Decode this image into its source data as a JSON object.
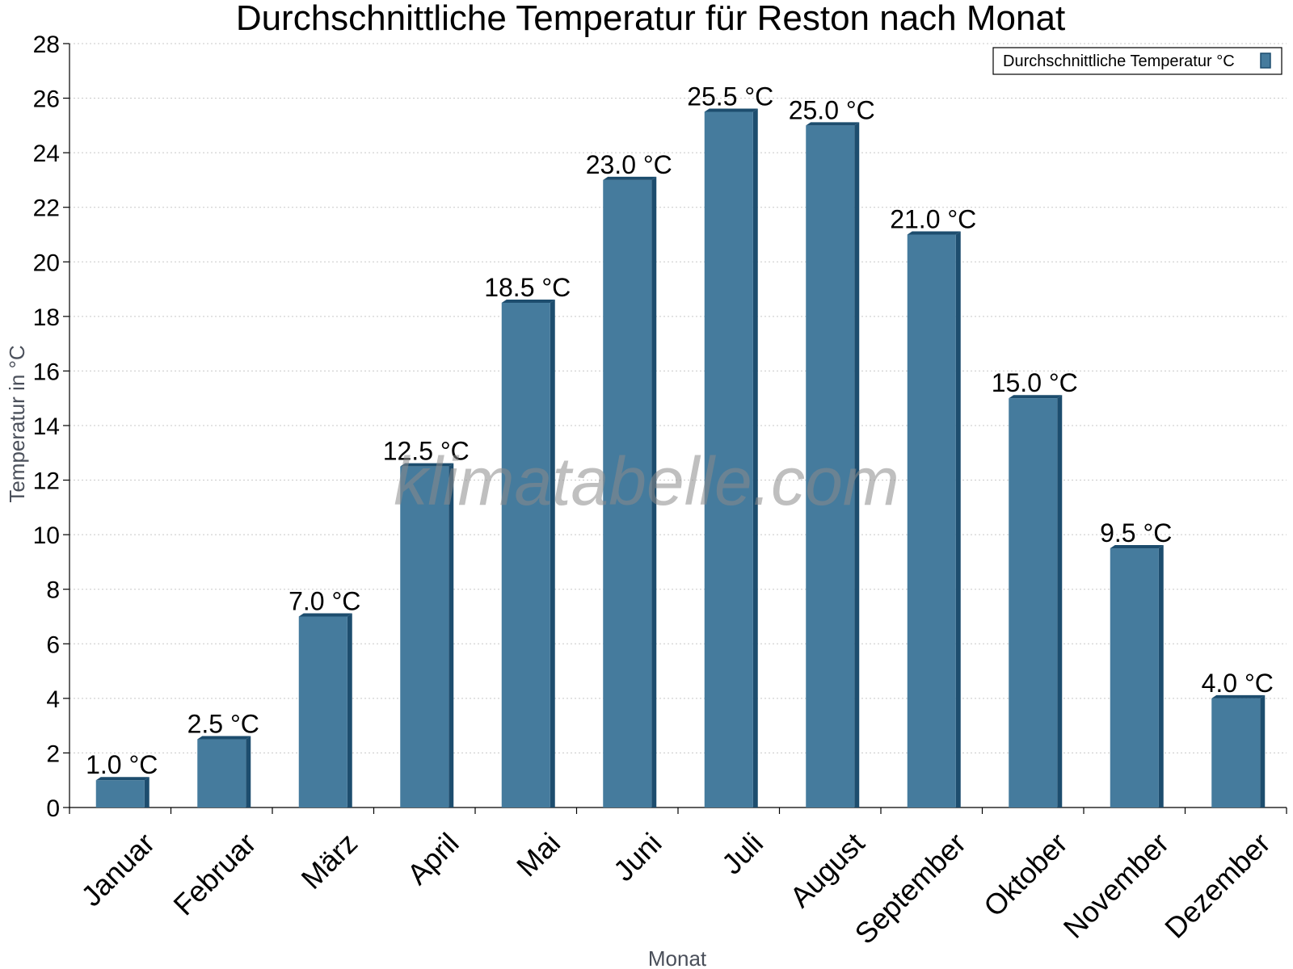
{
  "chart_data": {
    "type": "bar",
    "title": "Durchschnittliche Temperatur für Reston nach Monat",
    "xlabel": "Monat",
    "ylabel": "Temperatur in °C",
    "ylim": [
      0,
      28
    ],
    "yticks": [
      0,
      2,
      4,
      6,
      8,
      10,
      12,
      14,
      16,
      18,
      20,
      22,
      24,
      26,
      28
    ],
    "grid": true,
    "legend_position": "top-right",
    "unit_suffix": " °C",
    "categories": [
      "Januar",
      "Februar",
      "März",
      "April",
      "Mai",
      "Juni",
      "Juli",
      "August",
      "September",
      "Oktober",
      "November",
      "Dezember"
    ],
    "series": [
      {
        "name": "Durchschnittliche Temperatur °C",
        "values": [
          1.0,
          2.5,
          7.0,
          12.5,
          18.5,
          23.0,
          25.5,
          25.0,
          21.0,
          15.0,
          9.5,
          4.0
        ],
        "data_labels": [
          "1.0 °C",
          "2.5 °C",
          "7.0 °C",
          "12.5 °C",
          "18.5 °C",
          "23.0 °C",
          "25.5 °C",
          "25.0 °C",
          "21.0 °C",
          "15.0 °C",
          "9.5 °C",
          "4.0 °C"
        ],
        "color": "#457b9d",
        "edge_color": "#1d4d6e"
      }
    ],
    "watermark": "klimatabelle.com"
  }
}
